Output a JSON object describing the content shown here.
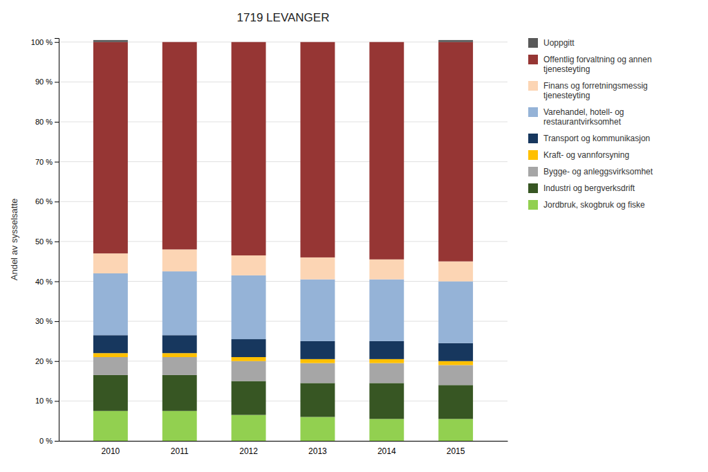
{
  "chart_data": {
    "type": "bar",
    "title": "1719 LEVANGER",
    "ylabel": "Andel av sysselsatte",
    "categories": [
      "2010",
      "2011",
      "2012",
      "2013",
      "2014",
      "2015"
    ],
    "series": [
      {
        "name": "Jordbruk, skogbruk og fiske",
        "color": "#92D050",
        "values": [
          7.5,
          7.5,
          6.5,
          6.0,
          5.5,
          5.5
        ]
      },
      {
        "name": "Industri og bergverksdrift",
        "color": "#375623",
        "values": [
          9.0,
          9.0,
          8.5,
          8.5,
          9.0,
          8.5
        ]
      },
      {
        "name": "Bygge- og anleggsvirksomhet",
        "color": "#A6A6A6",
        "values": [
          4.5,
          4.5,
          5.0,
          5.0,
          5.0,
          5.0
        ]
      },
      {
        "name": "Kraft- og vannforsyning",
        "color": "#FFC000",
        "values": [
          1.0,
          1.0,
          1.0,
          1.0,
          1.0,
          1.0
        ]
      },
      {
        "name": "Transport og kommunikasjon",
        "color": "#17375E",
        "values": [
          4.5,
          4.5,
          4.5,
          4.5,
          4.5,
          4.5
        ]
      },
      {
        "name": "Varehandel, hotell- og\nrestaurantvirksomhet",
        "color": "#95B3D7",
        "values": [
          15.5,
          16.0,
          16.0,
          15.5,
          15.5,
          15.5
        ]
      },
      {
        "name": "Finans og forretningsmessig\ntjenesteyting",
        "color": "#FCD5B4",
        "values": [
          5.0,
          5.5,
          5.0,
          5.5,
          5.0,
          5.0
        ]
      },
      {
        "name": "Offentlig forvaltning og annen\ntjenesteyting",
        "color": "#963634",
        "values": [
          53.0,
          52.0,
          53.5,
          54.0,
          54.5,
          55.0
        ]
      },
      {
        "name": "Uoppgitt",
        "color": "#595959",
        "values": [
          0.5,
          0.0,
          0.0,
          0.0,
          0.0,
          0.5
        ]
      }
    ],
    "ylim": [
      0,
      101
    ],
    "yticks": [
      {
        "value": 0,
        "label": "0 %"
      },
      {
        "value": 10,
        "label": "10 %"
      },
      {
        "value": 20,
        "label": "20 %"
      },
      {
        "value": 30,
        "label": "30 %"
      },
      {
        "value": 40,
        "label": "40 %"
      },
      {
        "value": 50,
        "label": "50 %"
      },
      {
        "value": 60,
        "label": "60 %"
      },
      {
        "value": 70,
        "label": "70 %"
      },
      {
        "value": 80,
        "label": "80 %"
      },
      {
        "value": 90,
        "label": "90 %"
      },
      {
        "value": 100,
        "label": "100 %"
      }
    ],
    "stacked": true,
    "grid": true,
    "legend": "right"
  }
}
